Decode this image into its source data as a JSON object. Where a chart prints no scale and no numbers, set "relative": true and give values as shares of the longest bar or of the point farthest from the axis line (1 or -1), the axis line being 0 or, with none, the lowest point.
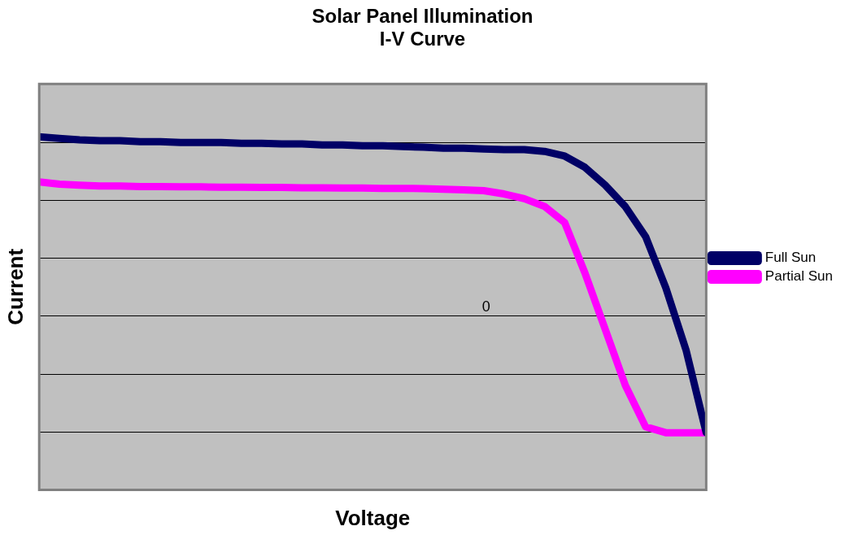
{
  "chart_data": {
    "type": "line",
    "title": "Solar Panel Illumination\nI-V Curve",
    "xlabel": "Voltage",
    "ylabel": "Current",
    "relative": true,
    "grid": "y",
    "legend": "right",
    "marker": "none",
    "line_style": "solid",
    "categories": [
      null,
      null,
      null,
      null,
      null,
      null,
      null,
      null,
      null,
      null,
      null,
      null,
      null,
      null,
      null,
      null,
      null,
      null,
      null,
      null,
      null,
      null,
      null,
      null,
      null,
      null,
      null,
      null,
      null,
      null,
      null,
      null,
      null,
      null
    ],
    "series": [
      {
        "name": "Full Sun",
        "color": "#000066",
        "values": [
          1.0,
          0.995,
          0.99,
          0.987,
          0.987,
          0.984,
          0.984,
          0.981,
          0.981,
          0.981,
          0.978,
          0.978,
          0.976,
          0.976,
          0.973,
          0.973,
          0.97,
          0.97,
          0.967,
          0.965,
          0.962,
          0.962,
          0.959,
          0.957,
          0.957,
          0.951,
          0.935,
          0.897,
          0.837,
          0.764,
          0.663,
          0.49,
          0.28,
          0.0
        ]
      },
      {
        "name": "Partial Sun",
        "color": "#ff00ff",
        "values": [
          0.848,
          0.84,
          0.837,
          0.834,
          0.834,
          0.832,
          0.832,
          0.831,
          0.831,
          0.83,
          0.83,
          0.829,
          0.829,
          0.828,
          0.828,
          0.827,
          0.827,
          0.826,
          0.826,
          0.825,
          0.823,
          0.821,
          0.818,
          0.807,
          0.791,
          0.765,
          0.71,
          0.54,
          0.35,
          0.16,
          0.02,
          0.0,
          0.0,
          0.0
        ]
      }
    ],
    "annotations": [
      "0"
    ]
  }
}
